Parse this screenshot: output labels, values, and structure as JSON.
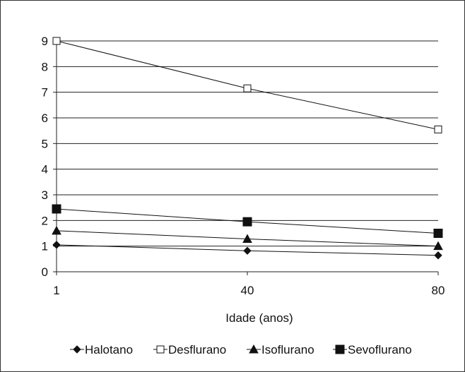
{
  "chart_data": {
    "type": "line",
    "title": "",
    "xlabel": "Idade (anos)",
    "ylabel": "",
    "categories": [
      "1",
      "40",
      "80"
    ],
    "ylim": [
      0,
      9
    ],
    "yticks": [
      "0",
      "1",
      "2",
      "3",
      "4",
      "5",
      "6",
      "7",
      "8",
      "9"
    ],
    "grid": true,
    "legend_position": "bottom",
    "series": [
      {
        "name": "Halotano",
        "values": [
          1.05,
          0.82,
          0.64
        ],
        "marker": "diamond",
        "marker_fill": "#111111",
        "color": "#111111"
      },
      {
        "name": "Desflurano",
        "values": [
          9.0,
          7.15,
          5.55
        ],
        "marker": "square-open",
        "marker_fill": "#ffffff",
        "color": "#111111"
      },
      {
        "name": "Isoflurano",
        "values": [
          1.6,
          1.28,
          1.0
        ],
        "marker": "triangle",
        "marker_fill": "#111111",
        "color": "#111111"
      },
      {
        "name": "Sevoflurano",
        "values": [
          2.45,
          1.95,
          1.5
        ],
        "marker": "square",
        "marker_fill": "#111111",
        "color": "#111111"
      }
    ]
  }
}
